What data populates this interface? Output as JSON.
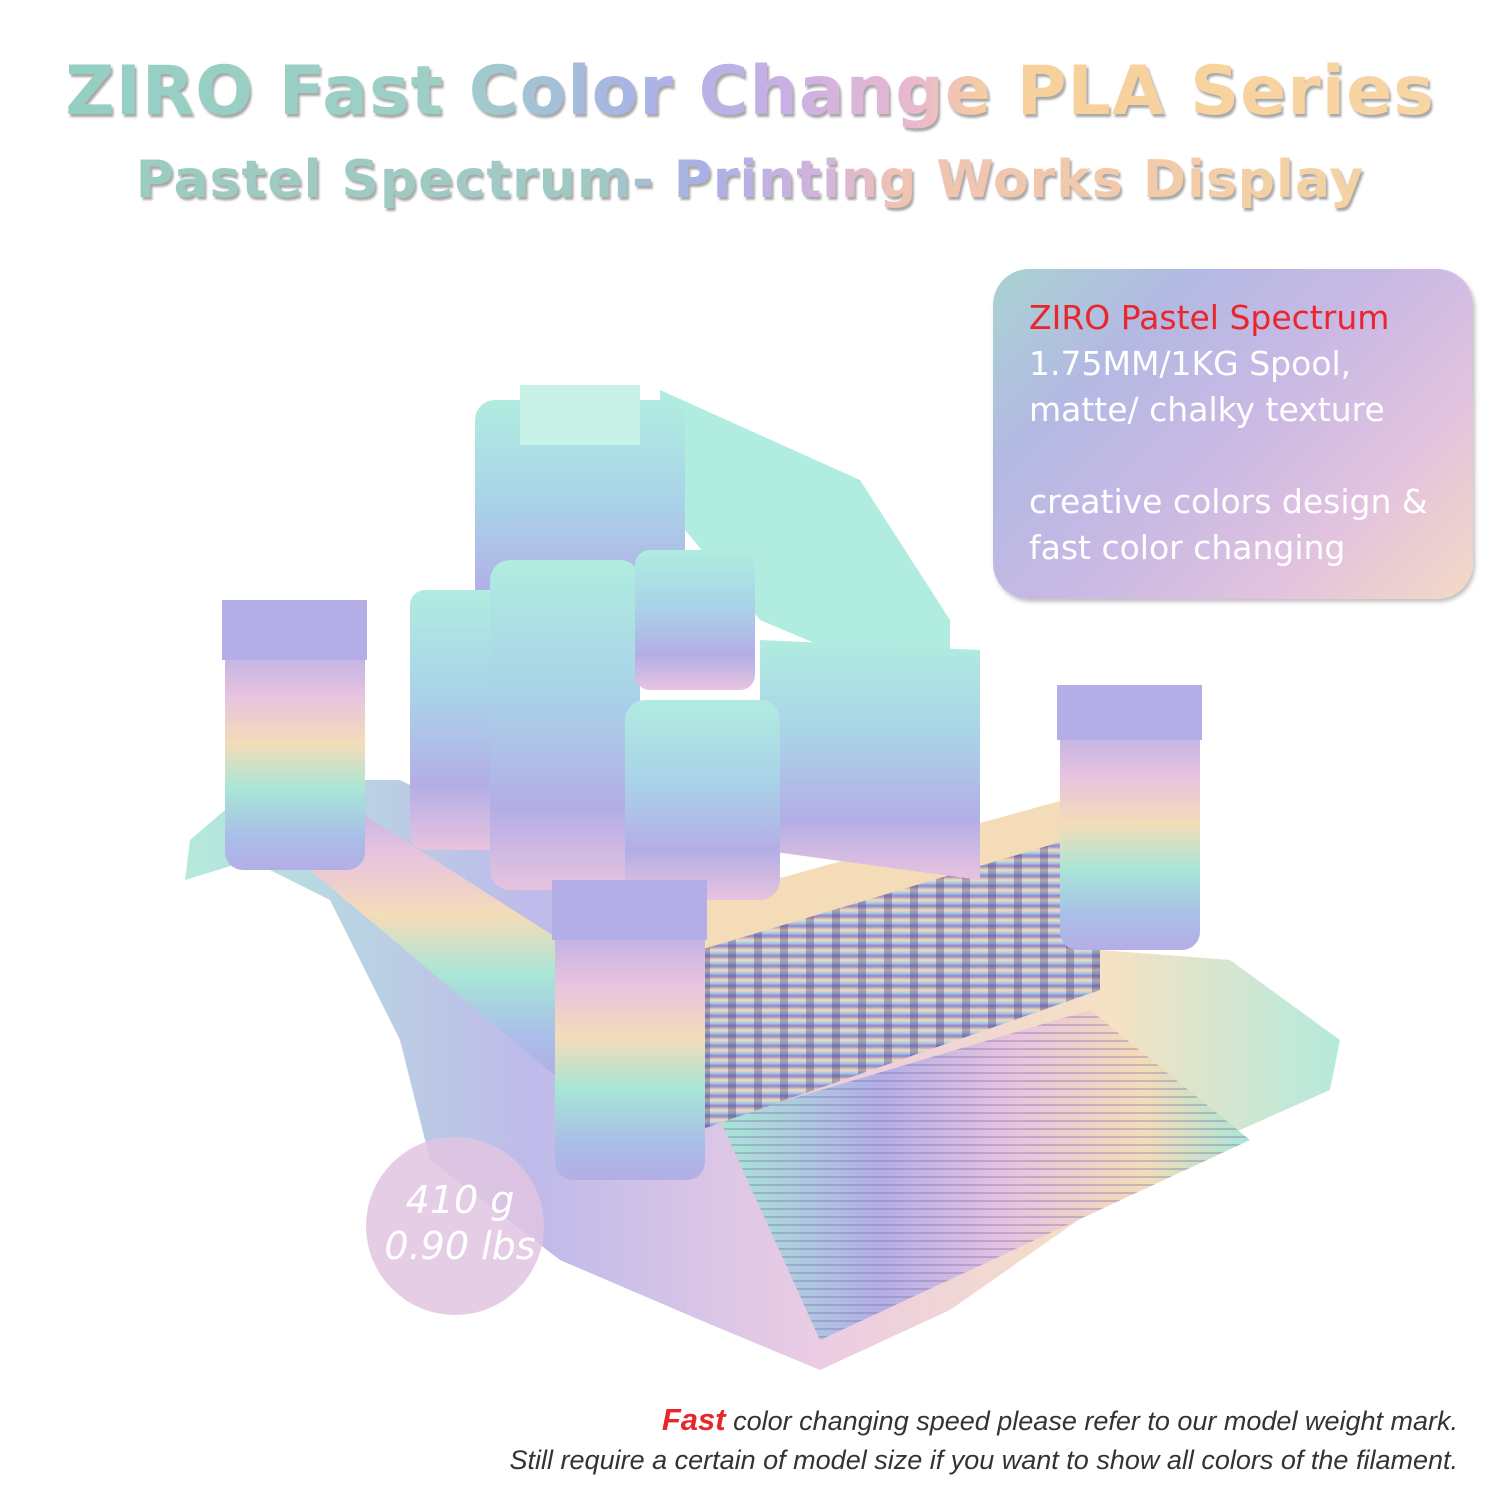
{
  "heading": {
    "title": "ZIRO Fast Color Change PLA Series",
    "subtitle": "Pastel Spectrum- Printing Works Display"
  },
  "infobox": {
    "product": "ZIRO Pastel Spectrum",
    "spec_line1": "1.75MM/1KG Spool,",
    "spec_line2": "matte/ chalky texture",
    "feature_line1": "creative colors design &",
    "feature_line2": "fast color changing"
  },
  "weight_badge": {
    "grams": "410 g",
    "pounds": "0.90 lbs"
  },
  "footnote": {
    "emphasis": "Fast",
    "line1_rest": " color changing speed please refer to our model weight mark.",
    "line2": "Still require a certain of model size if you want to show all colors of the filament."
  },
  "colors": {
    "accent_red": "#e8262b",
    "mint": "#a8e6d6",
    "sky": "#a9cbe8",
    "lavender": "#b3aee6",
    "pink": "#e8c3df",
    "peach": "#f4dcb8"
  },
  "image": {
    "subject": "castle-model"
  }
}
